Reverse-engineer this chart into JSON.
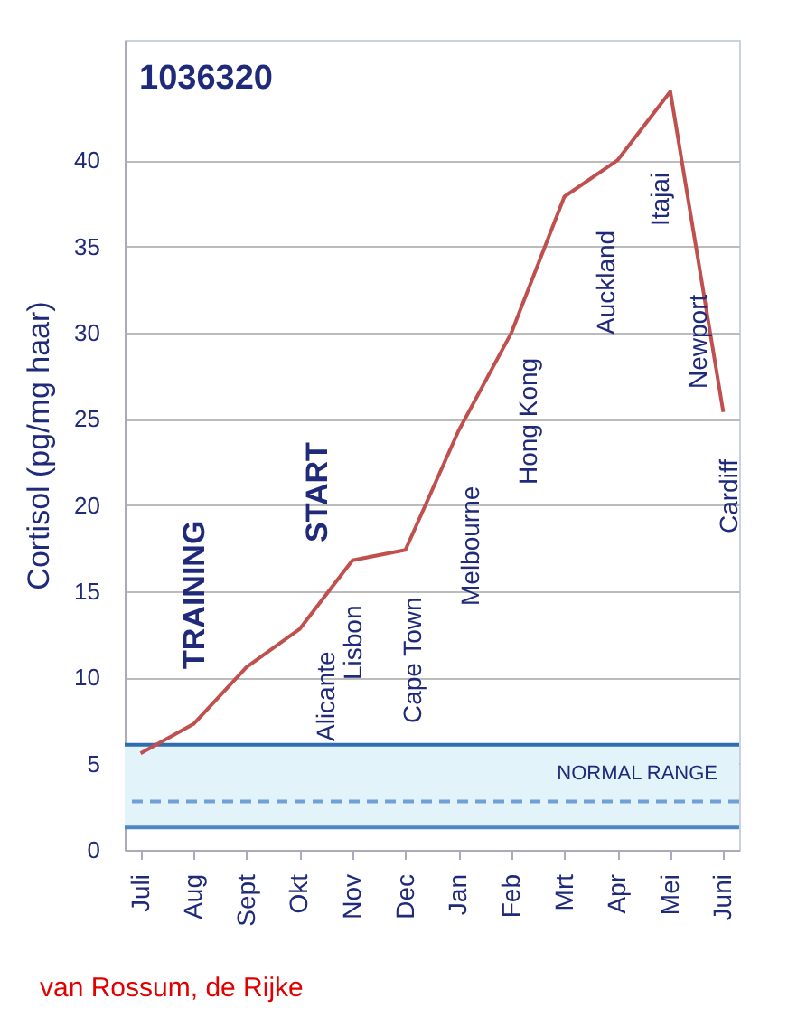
{
  "chart_data": {
    "type": "line",
    "title": "1036320",
    "ylabel": "Cortisol (pg/mg haar)",
    "categories": [
      "Juli",
      "Aug",
      "Sept",
      "Okt",
      "Nov",
      "Dec",
      "Jan",
      "Feb",
      "Mrt",
      "Apr",
      "Mei",
      "Juni"
    ],
    "series": [
      {
        "color": "#c0504d",
        "values": [
          5.6,
          7.3,
          10.6,
          12.8,
          16.8,
          17.4,
          24.3,
          30.0,
          37.9,
          40.0,
          44.0,
          25.4
        ]
      }
    ],
    "ylim": [
      0,
      47
    ],
    "yticks": [
      0,
      5,
      10,
      15,
      20,
      25,
      30,
      35,
      40
    ],
    "grid": "y",
    "marker": "none",
    "bands": [
      {
        "axis": "y",
        "from": 1.3,
        "to": 6.1,
        "label": "NORMAL RANGE",
        "color": "#e2f3f9"
      }
    ],
    "ref_lines": [
      {
        "axis": "y",
        "value": 6.1,
        "color": "#2e6db4",
        "line_style": "solid"
      },
      {
        "axis": "y",
        "value": 2.8,
        "color": "#6fa0d8",
        "line_style": "dashed"
      },
      {
        "axis": "y",
        "value": 1.3,
        "color": "#4f86c6",
        "line_style": "solid"
      }
    ],
    "annotations": [
      "TRAINING",
      "START",
      "Alicante",
      "Lisbon",
      "Cape Town",
      "Melbourne",
      "Hong Kong",
      "Auckland",
      "Itajai",
      "Newport",
      "Cardiff",
      "van Rossum, de Rijke"
    ]
  }
}
